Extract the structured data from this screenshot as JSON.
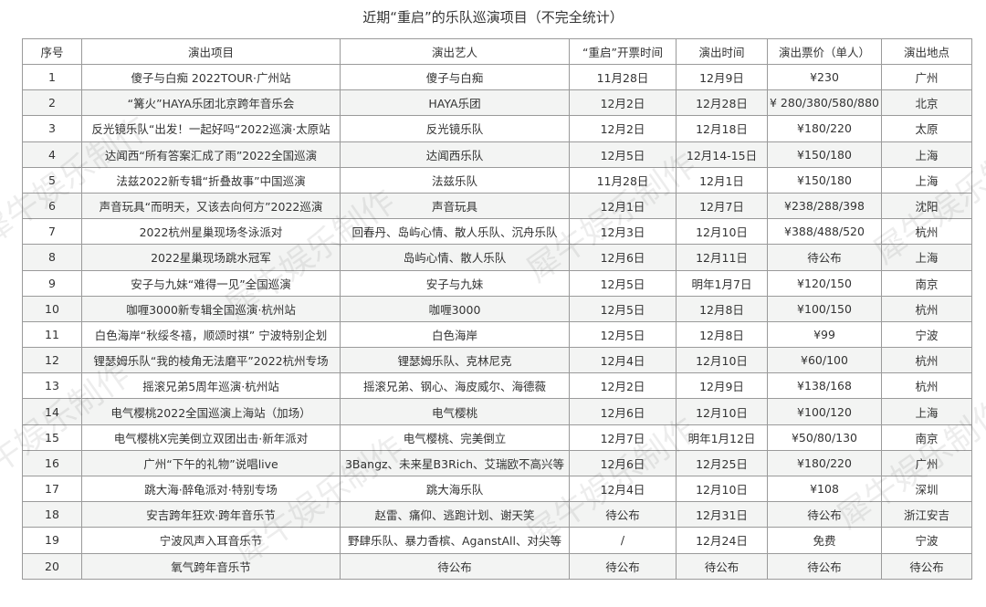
{
  "title": "近期“重启”的乐队巡演项目（不完全统计）",
  "watermark": "犀牛娱乐制作",
  "columns": [
    "序号",
    "演出项目",
    "演出艺人",
    "“重启”开票时间",
    "演出时间",
    "演出票价（单人）",
    "演出地点"
  ],
  "rows": [
    [
      "1",
      "傻子与白痴 2022TOUR·广州站",
      "傻子与白痴",
      "11月28日",
      "12月9日",
      "¥230",
      "广州"
    ],
    [
      "2",
      "“篝火”HAYA乐团北京跨年音乐会",
      "HAYA乐团",
      "12月2日",
      "12月28日",
      "¥ 280/380/580/880",
      "北京"
    ],
    [
      "3",
      "反光镜乐队“出发！一起好吗“2022巡演·太原站",
      "反光镜乐队",
      "12月2日",
      "12月18日",
      "¥180/220",
      "太原"
    ],
    [
      "4",
      "达闻西“所有答案汇成了雨”2022全国巡演",
      "达闻西乐队",
      "12月5日",
      "12月14-15日",
      "¥150/180",
      "上海"
    ],
    [
      "5",
      "法兹2022新专辑“折叠故事”中国巡演",
      "法兹乐队",
      "11月28日",
      "12月1日",
      "¥150/180",
      "上海"
    ],
    [
      "6",
      "声音玩具“而明天，又该去向何方”2022巡演",
      "声音玩具",
      "12月1日",
      "12月7日",
      "¥238/288/398",
      "沈阳"
    ],
    [
      "7",
      "2022杭州星巢现场冬泳派对",
      "回春丹、岛屿心情、散人乐队、沉舟乐队",
      "12月3日",
      "12月10日",
      "¥388/488/520",
      "杭州"
    ],
    [
      "8",
      "2022星巢现场跳水冠军",
      "岛屿心情、散人乐队",
      "12月6日",
      "12月11日",
      "待公布",
      "上海"
    ],
    [
      "9",
      "安子与九妹“难得一见”全国巡演",
      "安子与九妹",
      "12月5日",
      "明年1月7日",
      "¥120/150",
      "南京"
    ],
    [
      "10",
      "咖喱3000新专辑全国巡演·杭州站",
      "咖喱3000",
      "12月5日",
      "12月8日",
      "¥100/150",
      "杭州"
    ],
    [
      "11",
      "白色海岸“秋绥冬禧，顺颂时祺” 宁波特别企划",
      "白色海岸",
      "12月5日",
      "12月8日",
      "¥99",
      "宁波"
    ],
    [
      "12",
      "锂瑟姆乐队“我的棱角无法磨平”2022杭州专场",
      "锂瑟姆乐队、克林尼克",
      "12月4日",
      "12月10日",
      "¥60/100",
      "杭州"
    ],
    [
      "13",
      "摇滚兄弟5周年巡演·杭州站",
      "摇滚兄弟、钢心、海皮威尔、海德薇",
      "12月2日",
      "12月9日",
      "¥138/168",
      "杭州"
    ],
    [
      "14",
      "电气樱桃2022全国巡演上海站（加场）",
      "电气樱桃",
      "12月6日",
      "12月10日",
      "¥100/120",
      "上海"
    ],
    [
      "15",
      "电气樱桃X完美倒立双团出击·新年派对",
      "电气樱桃、完美倒立",
      "12月7日",
      "明年1月12日",
      "¥50/80/130",
      "南京"
    ],
    [
      "16",
      "广州“下午的礼物”说唱live",
      "3Bangz、未来星B3Rich、艾瑞欧不高兴等",
      "12月6日",
      "12月25日",
      "¥180/220",
      "广州"
    ],
    [
      "17",
      "跳大海·醉龟派对·特别专场",
      "跳大海乐队",
      "12月4日",
      "12月10日",
      "¥108",
      "深圳"
    ],
    [
      "18",
      "安吉跨年狂欢·跨年音乐节",
      "赵雷、痛仰、逃跑计划、谢天笑",
      "待公布",
      "12月31日",
      "待公布",
      "浙江安吉"
    ],
    [
      "19",
      "宁波风声入耳音乐节",
      "野肆乐队、暴力香槟、AganstAll、对尖等",
      "/",
      "12月24日",
      "免费",
      "宁波"
    ],
    [
      "20",
      "氧气跨年音乐节",
      "待公布",
      "待公布",
      "待公布",
      "待公布",
      "待公布"
    ]
  ]
}
